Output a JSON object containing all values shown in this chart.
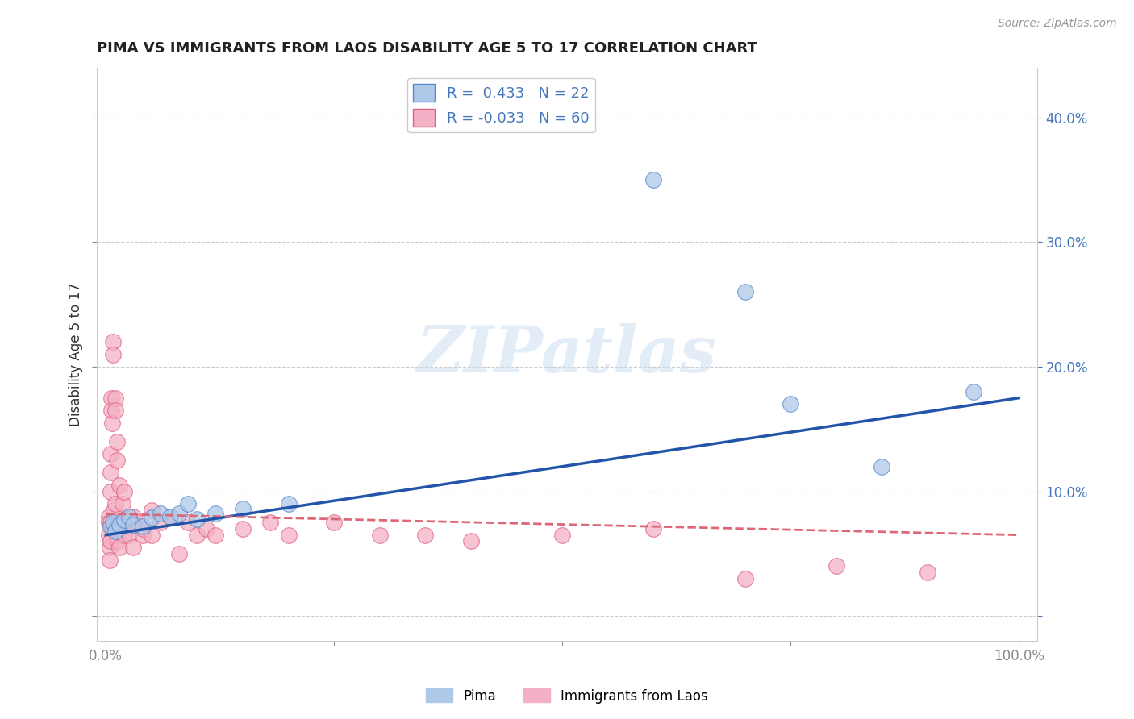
{
  "title": "PIMA VS IMMIGRANTS FROM LAOS DISABILITY AGE 5 TO 17 CORRELATION CHART",
  "source": "Source: ZipAtlas.com",
  "ylabel": "Disability Age 5 to 17",
  "xlabel": "",
  "xlim": [
    -0.01,
    1.02
  ],
  "ylim": [
    -0.02,
    0.44
  ],
  "xticks": [
    0.0,
    0.25,
    0.5,
    0.75,
    1.0
  ],
  "xticklabels": [
    "0.0%",
    "",
    "",
    "",
    "100.0%"
  ],
  "yticks": [
    0.0,
    0.1,
    0.2,
    0.3,
    0.4
  ],
  "yticklabels_right": [
    "",
    "10.0%",
    "20.0%",
    "30.0%",
    "40.0%"
  ],
  "watermark": "ZIPatlas",
  "pima_color": "#adc8e8",
  "pima_edge_color": "#5588cc",
  "immigrants_color": "#f4b0c4",
  "immigrants_edge_color": "#e06080",
  "pima_r": 0.433,
  "pima_n": 22,
  "immigrants_r": -0.033,
  "immigrants_n": 60,
  "pima_line_color": "#2255aa",
  "immigrants_line_color": "#dd6677",
  "grid_color": "#cccccc",
  "background_color": "#ffffff",
  "pima_x": [
    0.005,
    0.008,
    0.01,
    0.015,
    0.02,
    0.025,
    0.03,
    0.04,
    0.05,
    0.06,
    0.07,
    0.08,
    0.09,
    0.1,
    0.12,
    0.15,
    0.2,
    0.6,
    0.7,
    0.75,
    0.85,
    0.95
  ],
  "pima_y": [
    0.072,
    0.075,
    0.068,
    0.073,
    0.077,
    0.08,
    0.073,
    0.072,
    0.079,
    0.082,
    0.08,
    0.082,
    0.09,
    0.078,
    0.082,
    0.086,
    0.09,
    0.35,
    0.26,
    0.17,
    0.12,
    0.18
  ],
  "immigrants_x": [
    0.003,
    0.003,
    0.003,
    0.004,
    0.004,
    0.005,
    0.005,
    0.005,
    0.005,
    0.005,
    0.006,
    0.006,
    0.007,
    0.007,
    0.008,
    0.008,
    0.009,
    0.009,
    0.01,
    0.01,
    0.01,
    0.01,
    0.012,
    0.012,
    0.013,
    0.015,
    0.015,
    0.015,
    0.018,
    0.02,
    0.02,
    0.022,
    0.025,
    0.025,
    0.03,
    0.03,
    0.035,
    0.04,
    0.04,
    0.05,
    0.05,
    0.06,
    0.07,
    0.08,
    0.09,
    0.1,
    0.11,
    0.12,
    0.15,
    0.18,
    0.2,
    0.25,
    0.3,
    0.35,
    0.4,
    0.5,
    0.6,
    0.7,
    0.8,
    0.9
  ],
  "immigrants_y": [
    0.08,
    0.075,
    0.065,
    0.055,
    0.045,
    0.13,
    0.115,
    0.1,
    0.075,
    0.06,
    0.175,
    0.165,
    0.155,
    0.07,
    0.22,
    0.21,
    0.085,
    0.07,
    0.175,
    0.165,
    0.09,
    0.07,
    0.14,
    0.125,
    0.06,
    0.105,
    0.07,
    0.055,
    0.09,
    0.1,
    0.065,
    0.075,
    0.065,
    0.075,
    0.08,
    0.055,
    0.075,
    0.065,
    0.07,
    0.085,
    0.065,
    0.075,
    0.08,
    0.05,
    0.075,
    0.065,
    0.07,
    0.065,
    0.07,
    0.075,
    0.065,
    0.075,
    0.065,
    0.065,
    0.06,
    0.065,
    0.07,
    0.03,
    0.04,
    0.035
  ]
}
